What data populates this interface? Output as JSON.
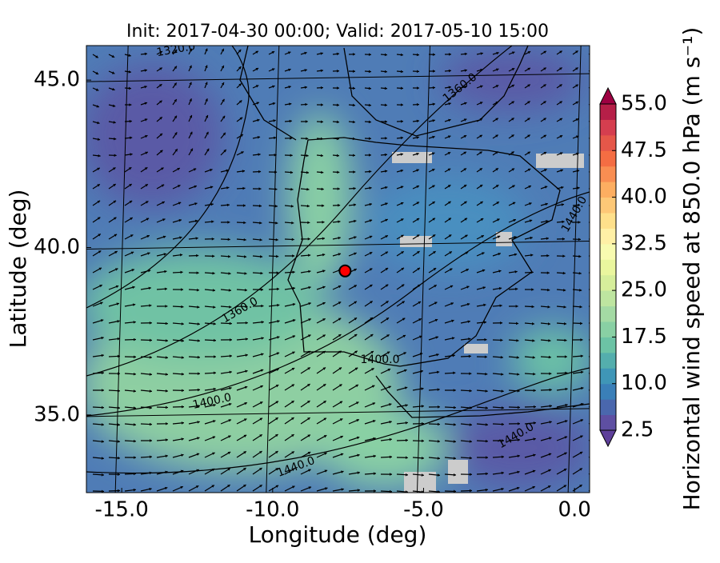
{
  "chart_data": {
    "type": "map",
    "title": "Init: 2017-04-30 00:00; Valid: 2017-05-10 15:00",
    "x_label": "Longitude (deg)",
    "y_label": "Latitude (deg)",
    "xlim": [
      -16.17,
      0.5
    ],
    "ylim": [
      32.68,
      46.03
    ],
    "xticks": [
      {
        "value": -15,
        "label": "-15.0"
      },
      {
        "value": -10,
        "label": "-10.0"
      },
      {
        "value": -5,
        "label": "-5.0"
      },
      {
        "value": 0,
        "label": "0.0"
      }
    ],
    "yticks": [
      {
        "value": 35,
        "label": "35.0"
      },
      {
        "value": 40,
        "label": "40.0"
      },
      {
        "value": 45,
        "label": "45.0"
      }
    ],
    "grid": true,
    "marker": {
      "x": -7.6,
      "y": 39.3,
      "color": "#ff0000"
    },
    "contour_labels": [
      "1320.0",
      "1360.0",
      "1360.0",
      "1400.0",
      "1400.0",
      "1440.0",
      "1440.0",
      "1440.0"
    ],
    "colorbar": {
      "label": "Horizontal wind speed at 850.0 hPa (m s⁻¹)",
      "clim": [
        2.5,
        55
      ],
      "ticks": [
        2.5,
        {
          "value": 10,
          "label": "10.0"
        },
        17.5,
        {
          "value": 25,
          "label": "25.0"
        },
        32.5,
        {
          "value": 40,
          "label": "40.0"
        },
        47.5,
        {
          "value": 55,
          "label": "55.0"
        }
      ],
      "colors": [
        "#5e4fa2",
        "#4a67ad",
        "#3a7fb8",
        "#3f96b7",
        "#54aead",
        "#6cc3a5",
        "#89d0a4",
        "#a4daa4",
        "#bee5a0",
        "#d6ee9b",
        "#eaf69e",
        "#f8fbb0",
        "#fff0a6",
        "#fee08b",
        "#fdc877",
        "#fdae61",
        "#f98e52",
        "#f46d43",
        "#e55749",
        "#d53e4f",
        "#b61f48"
      ]
    }
  }
}
